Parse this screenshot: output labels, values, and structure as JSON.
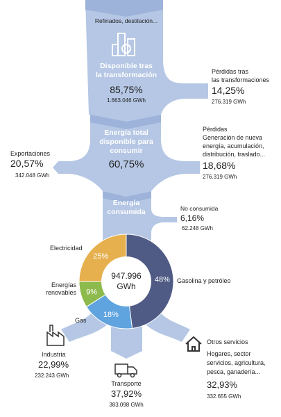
{
  "top": {
    "label": "Refinados, destilación..."
  },
  "stage1": {
    "title": [
      "Disponible tras",
      "la transformación"
    ],
    "percent": "85,75%",
    "gwh": "1.663.046 GWh"
  },
  "losses1": {
    "title": [
      "Pérdidas tras",
      "las transformaciones"
    ],
    "percent": "14,25%",
    "gwh": "276.319 GWh"
  },
  "stage2": {
    "title": [
      "Energía total",
      "disponible para",
      "consumir"
    ],
    "percent": "60,75%"
  },
  "exports": {
    "title": "Exportaciones",
    "percent": "20,57%",
    "gwh": "342.048 GWh"
  },
  "losses2": {
    "title": [
      "Pérdidas",
      "Generación de nueva",
      "energía, acumulación,",
      "distribución, traslado..."
    ],
    "percent": "18,68%",
    "gwh": "276.319 GWh"
  },
  "stage3": {
    "title": [
      "Energía",
      "consumida"
    ]
  },
  "unconsumed": {
    "title": "No consumida",
    "percent": "6,16%",
    "gwh": "62.248 GWh"
  },
  "chart_data": {
    "type": "pie",
    "center_label": [
      "947.996",
      "GWh"
    ],
    "categories": [
      "Gasolina y petróleo",
      "Gas",
      "Energías renovables",
      "Electricidad"
    ],
    "values": [
      48,
      18,
      9,
      25
    ],
    "value_labels": [
      "48%",
      "18%",
      "9%",
      "25%"
    ],
    "colors": [
      "#4f5b84",
      "#5fa3df",
      "#8dba4c",
      "#e7b04f"
    ]
  },
  "uses": {
    "industry": {
      "title": "Industria",
      "percent": "22,99%",
      "gwh": "232.243 GWh"
    },
    "transport": {
      "title": "Transporte",
      "percent": "37,92%",
      "gwh": "383.098 GWh"
    },
    "services": {
      "title": [
        "Otros servicios",
        "Hogares, sector",
        "servicios, agricultura,",
        "pesca, ganadería..."
      ],
      "percent": "32,93%",
      "gwh": "332.655 GWh"
    }
  }
}
